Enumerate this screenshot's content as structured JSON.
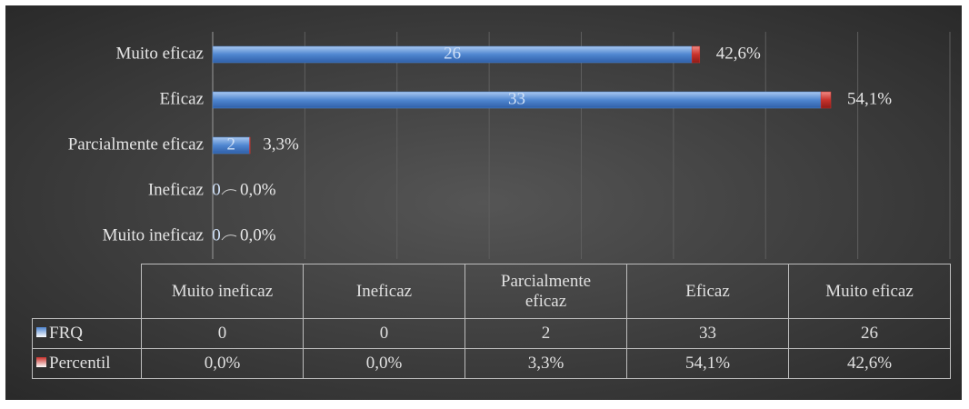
{
  "chart_data": {
    "type": "bar",
    "orientation": "horizontal",
    "stacked": true,
    "categories": [
      "Muito ineficaz",
      "Ineficaz",
      "Parcialmente eficaz",
      "Eficaz",
      "Muito eficaz"
    ],
    "series": [
      {
        "name": "FRQ",
        "color": "#4f86d0",
        "values": [
          0,
          0,
          2,
          33,
          26
        ]
      },
      {
        "name": "Percentil",
        "color": "#c8322c",
        "values": [
          0.0,
          0.0,
          0.033,
          0.541,
          0.426
        ],
        "value_labels": [
          "0,0%",
          "0,0%",
          "3,3%",
          "54,1%",
          "42,6%"
        ]
      }
    ],
    "xlim": [
      0,
      40
    ],
    "xticks": [
      0,
      5,
      10,
      15,
      20,
      25,
      30,
      35,
      40
    ],
    "grid": true,
    "data_table": true
  }
}
